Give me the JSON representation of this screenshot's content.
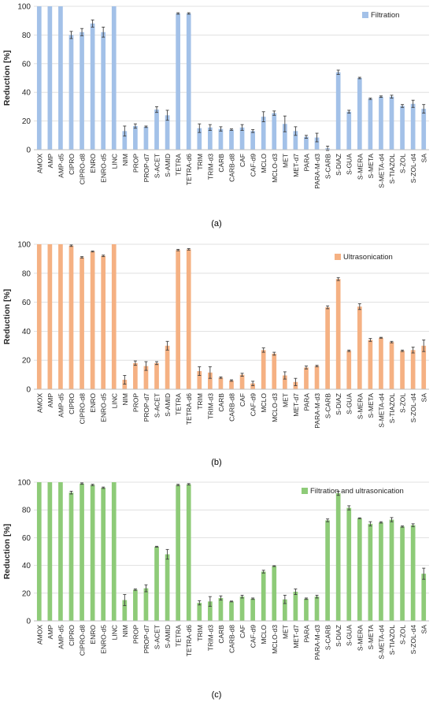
{
  "categories": [
    "AMOX",
    "AMP",
    "AMP-d5",
    "CIPRO",
    "CIPRO-d8",
    "ENRO",
    "ENRO-d5",
    "LINC",
    "NIM",
    "PROP",
    "PROP-d7",
    "S-ACET",
    "S-AMID",
    "TETRA",
    "TETRA-d6",
    "TRIM",
    "TRIM-d3",
    "CARB",
    "CARB-d8",
    "CAF",
    "CAF-d9",
    "MCLO",
    "MCLO-d3",
    "MET",
    "MET-d7",
    "PARA",
    "PARA-M-d3",
    "S-CARB",
    "S-DIAZ",
    "S-GUA",
    "S-MERA",
    "S-META",
    "S-META-d4",
    "S-TIAZOL",
    "S-ZOL",
    "S-ZOL-d4",
    "SA"
  ],
  "chart_data": [
    {
      "type": "bar",
      "panel_label": "(a)",
      "ylabel": "Reduction [%]",
      "ylim": [
        0,
        100
      ],
      "yticks": [
        0,
        20,
        40,
        60,
        80,
        100
      ],
      "color": "#a3c1e8",
      "series": [
        {
          "name": "Filtration",
          "values": [
            100,
            100,
            100,
            80,
            82,
            88,
            82,
            100,
            13,
            16.5,
            16,
            28,
            24,
            95,
            95,
            15,
            15.5,
            14.5,
            14,
            15.5,
            13,
            23,
            25.5,
            18,
            13,
            9,
            8.5,
            1,
            54,
            26.5,
            50,
            35.5,
            37,
            37,
            30.5,
            32,
            28.5
          ],
          "errors": [
            0,
            0,
            0,
            2.5,
            2.5,
            2.5,
            3.5,
            0,
            3.5,
            1.5,
            0.5,
            2,
            3.5,
            0.5,
            0.5,
            3,
            2,
            1.5,
            0.5,
            2,
            1,
            3.5,
            1.5,
            5.5,
            3,
            1,
            3,
            1.5,
            1.5,
            1,
            0.5,
            0.5,
            0.5,
            1,
            1,
            2.5,
            3
          ]
        }
      ]
    },
    {
      "type": "bar",
      "panel_label": "(b)",
      "ylabel": "Reduction [%]",
      "ylim": [
        0,
        100
      ],
      "yticks": [
        0,
        20,
        40,
        60,
        80,
        100
      ],
      "color": "#f5b183",
      "series": [
        {
          "name": "Ultrasonication",
          "values": [
            100,
            100,
            100,
            99,
            91,
            95,
            92,
            100,
            6.5,
            18,
            16,
            18,
            30,
            96,
            96.5,
            12.5,
            11.5,
            8,
            6,
            10,
            4,
            27,
            24.5,
            9.5,
            5,
            15,
            16,
            56.5,
            76,
            26.5,
            57,
            34,
            35.5,
            32.5,
            26.5,
            27,
            30
          ],
          "errors": [
            0,
            0,
            0,
            0.5,
            0.5,
            0.3,
            0.5,
            0,
            3,
            1.5,
            3,
            1,
            3,
            0.5,
            0.5,
            3,
            4,
            0.5,
            0.5,
            1,
            1.5,
            1.5,
            1,
            2.5,
            2.5,
            1,
            0.5,
            1,
            1,
            0.5,
            2,
            1,
            0.3,
            0.5,
            0.5,
            2,
            4
          ]
        }
      ]
    },
    {
      "type": "bar",
      "panel_label": "(c)",
      "ylabel": "Reduction [%]",
      "ylim": [
        0,
        100
      ],
      "yticks": [
        0,
        20,
        40,
        60,
        80,
        100
      ],
      "color": "#8ecb78",
      "series": [
        {
          "name": "Filtration and ultrasonication",
          "values": [
            100,
            100,
            100,
            92.5,
            99,
            98,
            96,
            100,
            15,
            22.5,
            23.5,
            53.5,
            48,
            98,
            98.5,
            13,
            14,
            16.5,
            14,
            17.5,
            16,
            35.5,
            39.5,
            15.5,
            21,
            16,
            17.5,
            72.5,
            92,
            81.5,
            74,
            70,
            71,
            73,
            68,
            69,
            34
          ],
          "errors": [
            0,
            0,
            0,
            1,
            0.5,
            0.5,
            0.5,
            0,
            4,
            0.5,
            2.5,
            0.3,
            3.5,
            0.5,
            0.5,
            1.5,
            3.5,
            1.5,
            0.3,
            1,
            0.5,
            1,
            0.3,
            3,
            2,
            0.5,
            1,
            1,
            1.5,
            1.5,
            0.3,
            1.5,
            0.5,
            1.5,
            0.5,
            1,
            4
          ]
        }
      ]
    }
  ]
}
